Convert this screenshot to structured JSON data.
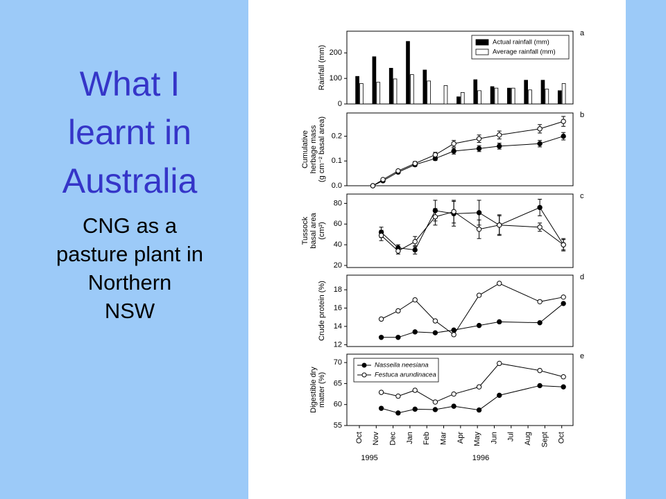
{
  "slide": {
    "title": [
      "What I",
      "learnt in",
      "Australia"
    ],
    "subtitle": [
      "CNG as a",
      "pasture plant in",
      "Northern",
      "NSW"
    ]
  },
  "chart_data": [
    {
      "type": "bar",
      "label": "a",
      "ylabel": [
        "Rainfall (mm)"
      ],
      "xlim": [
        -0.74,
        12.67
      ],
      "ylim": [
        0,
        285
      ],
      "yticks": [
        0,
        100,
        200
      ],
      "legend": "upper right",
      "x": [
        0,
        1,
        2,
        3,
        4,
        5,
        6,
        7,
        8,
        9,
        10,
        11,
        12
      ],
      "series": [
        {
          "name": "Actual rainfall (mm)",
          "color": "#000000",
          "values": [
            108,
            185,
            140,
            245,
            133,
            null,
            28,
            95,
            68,
            62,
            93,
            93,
            52
          ]
        },
        {
          "name": "Average rainfall (mm)",
          "color": "#ffffff",
          "values": [
            80,
            85,
            98,
            115,
            90,
            72,
            45,
            52,
            62,
            62,
            55,
            58,
            80
          ]
        }
      ]
    },
    {
      "type": "line",
      "label": "b",
      "ylabel": [
        "Cumulative",
        "herbage mass",
        "(g cm⁻² basal area)"
      ],
      "xlim": [
        -0.74,
        12.67
      ],
      "ylim": [
        0,
        0.294
      ],
      "yticks": [
        {
          "value": 0,
          "label": "0.0"
        },
        0.1,
        0.2
      ],
      "x": [
        0.8,
        1.4,
        2.3,
        3.3,
        4.5,
        5.6,
        7.1,
        8.3,
        10.7,
        12.1
      ],
      "series": [
        {
          "color": "#000000",
          "marker_fill": "#000000",
          "values": [
            0.0,
            0.02,
            0.055,
            0.085,
            0.11,
            0.14,
            0.15,
            0.16,
            0.17,
            0.2
          ],
          "errors": [
            0.003,
            0.004,
            0.005,
            0.007,
            0.008,
            0.012,
            0.012,
            0.012,
            0.013,
            0.015
          ]
        },
        {
          "color": "#000000",
          "marker_fill": "#ffffff",
          "values": [
            0.0,
            0.025,
            0.06,
            0.09,
            0.125,
            0.17,
            0.19,
            0.205,
            0.23,
            0.26
          ],
          "errors": [
            0.003,
            0.004,
            0.005,
            0.008,
            0.01,
            0.013,
            0.015,
            0.016,
            0.017,
            0.02
          ]
        }
      ]
    },
    {
      "type": "line",
      "label": "c",
      "ylabel": [
        "Tussock",
        "basal area",
        "(cm²)"
      ],
      "xlim": [
        -0.74,
        12.67
      ],
      "ylim": [
        18,
        89
      ],
      "yticks": [
        20,
        40,
        60,
        80
      ],
      "x": [
        1.3,
        2.3,
        3.3,
        4.5,
        5.6,
        7.1,
        8.3,
        10.7,
        12.1
      ],
      "series": [
        {
          "color": "#000000",
          "marker_fill": "#000000",
          "values": [
            52,
            37,
            35,
            73,
            70,
            71,
            59,
            76,
            40
          ],
          "errors": [
            5,
            3,
            4,
            10,
            12,
            12,
            10,
            8,
            6
          ]
        },
        {
          "color": "#000000",
          "marker_fill": "#ffffff",
          "values": [
            49,
            34,
            43,
            67,
            72,
            55,
            59,
            57,
            40
          ],
          "errors": [
            5,
            3,
            5,
            8,
            11,
            9,
            9,
            4,
            5
          ]
        }
      ]
    },
    {
      "type": "line",
      "label": "d",
      "ylabel": [
        "Crude protein (%)"
      ],
      "xlim": [
        -0.74,
        12.67
      ],
      "ylim": [
        11.8,
        19.6
      ],
      "yticks": [
        12,
        14,
        16,
        18
      ],
      "x": [
        1.3,
        2.3,
        3.3,
        4.5,
        5.6,
        7.1,
        8.3,
        10.7,
        12.1
      ],
      "series": [
        {
          "color": "#000000",
          "marker_fill": "#000000",
          "values": [
            12.8,
            12.8,
            13.4,
            13.3,
            13.6,
            14.1,
            14.5,
            14.4,
            16.5
          ]
        },
        {
          "color": "#000000",
          "marker_fill": "#ffffff",
          "values": [
            14.8,
            15.7,
            16.9,
            14.6,
            13.1,
            17.4,
            18.7,
            16.7,
            17.2
          ]
        }
      ]
    },
    {
      "type": "line",
      "label": "e",
      "ylabel": [
        "Digestible dry",
        "matter (%)"
      ],
      "xlim": [
        -0.74,
        12.67
      ],
      "ylim": [
        55,
        72
      ],
      "yticks": [
        55,
        60,
        65,
        70
      ],
      "legend": "upper left",
      "x": [
        1.3,
        2.3,
        3.3,
        4.5,
        5.6,
        7.1,
        8.3,
        10.7,
        12.1
      ],
      "xticks": [
        {
          "value": 0,
          "label": "Oct"
        },
        {
          "value": 1,
          "label": "Nov"
        },
        {
          "value": 2,
          "label": "Dec"
        },
        {
          "value": 3,
          "label": "Jan"
        },
        {
          "value": 4,
          "label": "Feb"
        },
        {
          "value": 5,
          "label": "Mar"
        },
        {
          "value": 6,
          "label": "Apr"
        },
        {
          "value": 7,
          "label": "May"
        },
        {
          "value": 8,
          "label": "Jun"
        },
        {
          "value": 9,
          "label": "Jul"
        },
        {
          "value": 10,
          "label": "Aug"
        },
        {
          "value": 11,
          "label": "Sept"
        },
        {
          "value": 12,
          "label": "Oct"
        }
      ],
      "year_labels": [
        {
          "value": 0.6,
          "label": "1995"
        },
        {
          "value": 7.2,
          "label": "1996"
        }
      ],
      "series": [
        {
          "name": "Nasseila neesiana",
          "color": "#000000",
          "marker_fill": "#000000",
          "values": [
            59.1,
            58.0,
            58.9,
            58.8,
            59.6,
            58.7,
            62.2,
            64.5,
            64.2
          ]
        },
        {
          "name": "Festuca arundinacea",
          "color": "#000000",
          "marker_fill": "#ffffff",
          "values": [
            62.9,
            62.0,
            63.4,
            60.6,
            62.5,
            64.2,
            69.8,
            68.1,
            66.6
          ]
        }
      ]
    }
  ]
}
